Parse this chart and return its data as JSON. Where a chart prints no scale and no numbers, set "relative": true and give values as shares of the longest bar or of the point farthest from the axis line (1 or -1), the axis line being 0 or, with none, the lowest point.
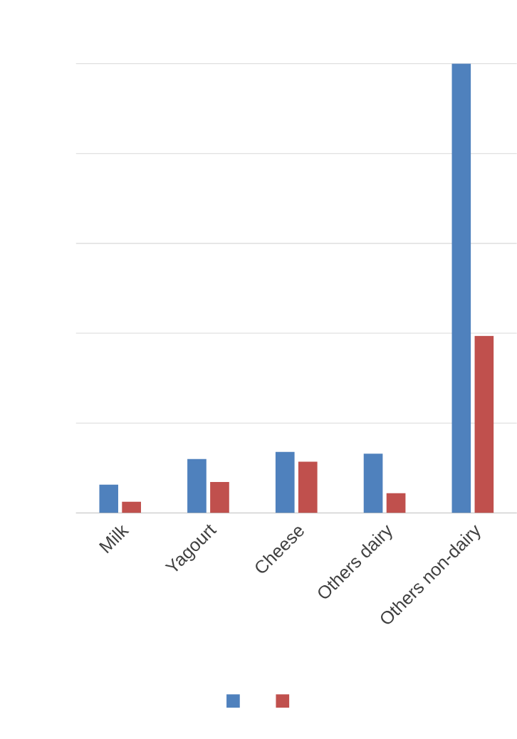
{
  "chart_data": {
    "type": "bar",
    "relative": true,
    "grid": true,
    "categories": [
      "Milk",
      "Yagourt",
      "Cheese",
      "Others dairy",
      "Others non-dairy"
    ],
    "series": [
      {
        "color": "#4f81bd",
        "values": [
          0.063,
          0.12,
          0.136,
          0.132,
          1
        ]
      },
      {
        "color": "#c0504d",
        "values": [
          0.025,
          0.069,
          0.114,
          0.044,
          0.394
        ]
      }
    ]
  }
}
